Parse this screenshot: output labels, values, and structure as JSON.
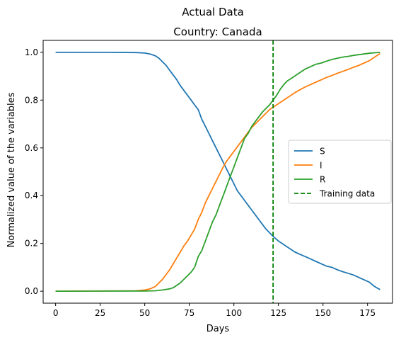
{
  "chart_data": {
    "type": "line",
    "suptitle": "Actual Data",
    "title": "Country: Canada",
    "xlabel": "Days",
    "ylabel": "Normalized value of the variables",
    "xlim": [
      -7,
      189
    ],
    "ylim": [
      -0.05,
      1.05
    ],
    "xticks": [
      0,
      25,
      50,
      75,
      100,
      125,
      150,
      175
    ],
    "yticks": [
      0.0,
      0.2,
      0.4,
      0.6,
      0.8,
      1.0
    ],
    "xtick_labels": [
      "0",
      "25",
      "50",
      "75",
      "100",
      "125",
      "150",
      "175"
    ],
    "ytick_labels": [
      "0.0",
      "0.2",
      "0.4",
      "0.6",
      "0.8",
      "1.0"
    ],
    "grid": false,
    "legend_position": "center-right",
    "series": [
      {
        "name": "S",
        "color": "#1f77b4",
        "x": [
          0,
          30,
          45,
          50,
          53,
          56,
          58,
          60,
          62,
          64,
          66,
          68,
          70,
          72,
          74,
          76,
          78,
          80,
          82,
          84,
          86,
          88,
          90,
          92,
          94,
          96,
          98,
          100,
          102,
          104,
          106,
          108,
          110,
          112,
          114,
          116,
          118,
          120,
          122,
          125,
          128,
          131,
          134,
          137,
          140,
          143,
          146,
          149,
          152,
          155,
          158,
          161,
          164,
          167,
          170,
          173,
          176,
          178,
          180,
          182
        ],
        "values": [
          1.0,
          1.0,
          0.999,
          0.997,
          0.993,
          0.985,
          0.975,
          0.96,
          0.945,
          0.925,
          0.905,
          0.885,
          0.86,
          0.84,
          0.82,
          0.8,
          0.78,
          0.76,
          0.72,
          0.69,
          0.66,
          0.63,
          0.6,
          0.57,
          0.54,
          0.51,
          0.48,
          0.45,
          0.42,
          0.4,
          0.38,
          0.36,
          0.34,
          0.32,
          0.3,
          0.28,
          0.26,
          0.245,
          0.23,
          0.21,
          0.195,
          0.18,
          0.165,
          0.155,
          0.145,
          0.135,
          0.125,
          0.115,
          0.105,
          0.1,
          0.09,
          0.082,
          0.075,
          0.068,
          0.058,
          0.048,
          0.038,
          0.025,
          0.015,
          0.007
        ]
      },
      {
        "name": "I",
        "color": "#ff7f0e",
        "x": [
          0,
          45,
          50,
          53,
          56,
          58,
          60,
          62,
          64,
          66,
          68,
          70,
          72,
          74,
          76,
          78,
          80,
          82,
          84,
          86,
          88,
          90,
          92,
          94,
          96,
          98,
          100,
          102,
          104,
          106,
          108,
          110,
          112,
          114,
          116,
          118,
          120,
          122,
          125,
          128,
          131,
          134,
          137,
          140,
          143,
          146,
          149,
          152,
          155,
          158,
          161,
          164,
          167,
          170,
          173,
          176,
          178,
          180,
          182
        ],
        "values": [
          0.0,
          0.002,
          0.005,
          0.01,
          0.02,
          0.035,
          0.05,
          0.07,
          0.09,
          0.115,
          0.14,
          0.165,
          0.19,
          0.21,
          0.235,
          0.26,
          0.3,
          0.33,
          0.37,
          0.4,
          0.43,
          0.46,
          0.49,
          0.52,
          0.545,
          0.565,
          0.585,
          0.605,
          0.625,
          0.645,
          0.665,
          0.685,
          0.7,
          0.715,
          0.73,
          0.745,
          0.76,
          0.77,
          0.785,
          0.8,
          0.815,
          0.83,
          0.843,
          0.855,
          0.865,
          0.875,
          0.885,
          0.895,
          0.903,
          0.912,
          0.92,
          0.928,
          0.937,
          0.945,
          0.955,
          0.965,
          0.975,
          0.985,
          0.995
        ]
      },
      {
        "name": "R",
        "color": "#2ca02c",
        "x": [
          0,
          50,
          56,
          60,
          64,
          66,
          68,
          70,
          72,
          74,
          76,
          78,
          80,
          82,
          84,
          86,
          88,
          90,
          92,
          94,
          96,
          98,
          100,
          102,
          104,
          106,
          108,
          110,
          112,
          114,
          116,
          118,
          120,
          122,
          124,
          126,
          128,
          130,
          132,
          134,
          137,
          140,
          143,
          146,
          149,
          152,
          155,
          158,
          161,
          164,
          167,
          170,
          173,
          176,
          179,
          182
        ],
        "values": [
          0.0,
          0.001,
          0.002,
          0.005,
          0.01,
          0.015,
          0.025,
          0.035,
          0.05,
          0.065,
          0.08,
          0.1,
          0.145,
          0.17,
          0.21,
          0.25,
          0.29,
          0.32,
          0.36,
          0.4,
          0.44,
          0.48,
          0.52,
          0.56,
          0.6,
          0.64,
          0.66,
          0.69,
          0.71,
          0.73,
          0.75,
          0.765,
          0.78,
          0.8,
          0.82,
          0.845,
          0.865,
          0.88,
          0.89,
          0.9,
          0.915,
          0.93,
          0.94,
          0.95,
          0.955,
          0.963,
          0.97,
          0.975,
          0.98,
          0.983,
          0.987,
          0.99,
          0.993,
          0.996,
          0.998,
          1.0
        ]
      }
    ],
    "reference_line": {
      "name": "Training data",
      "x": 122,
      "color": "#008000",
      "style": "dashed"
    }
  }
}
